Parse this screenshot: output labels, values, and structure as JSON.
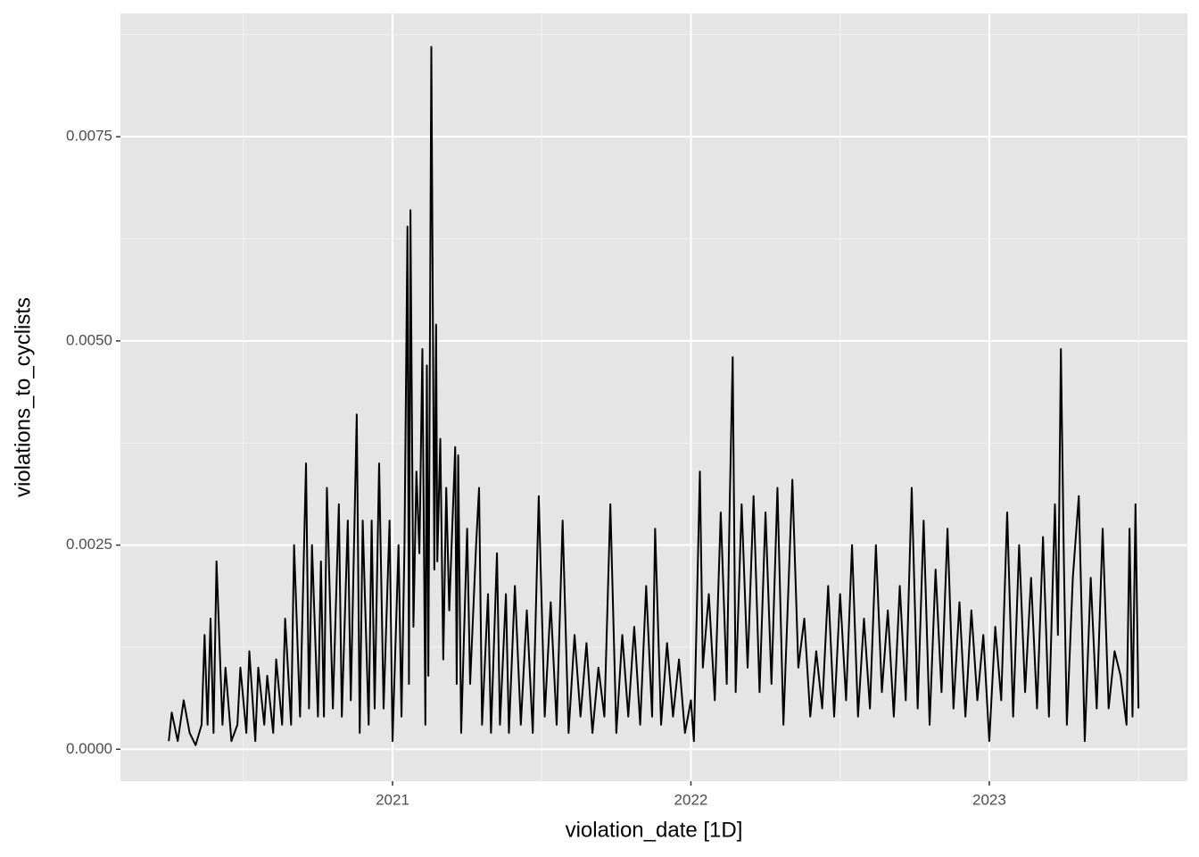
{
  "chart_data": {
    "type": "line",
    "x_label": "violation_date [1D]",
    "y_label": "violations_to_cyclists",
    "xlim": [
      2020.088,
      2023.664
    ],
    "ylim": [
      -0.00039,
      0.00901
    ],
    "xticks": [
      2021,
      2022,
      2023
    ],
    "yticks": [
      {
        "value": 0,
        "label": "0.0000"
      },
      {
        "value": 0.0025,
        "label": "0.0025"
      },
      {
        "value": 0.005,
        "label": "0.0050"
      },
      {
        "value": 0.0075,
        "label": "0.0075"
      }
    ],
    "x_minor_grid": [
      2020.5,
      2021.5,
      2022.5,
      2023.5
    ],
    "y_minor_grid": [
      0.00125,
      0.00375,
      0.00625,
      0.00875
    ],
    "grid": true,
    "series": [
      {
        "color": "#000000",
        "x": [
          2020.25,
          2020.26,
          2020.28,
          2020.3,
          2020.32,
          2020.34,
          2020.36,
          2020.37,
          2020.38,
          2020.39,
          2020.4,
          2020.41,
          2020.43,
          2020.44,
          2020.46,
          2020.48,
          2020.49,
          2020.51,
          2020.52,
          2020.54,
          2020.55,
          2020.57,
          2020.58,
          2020.6,
          2020.61,
          2020.63,
          2020.64,
          2020.66,
          2020.67,
          2020.69,
          2020.71,
          2020.72,
          2020.73,
          2020.75,
          2020.76,
          2020.77,
          2020.78,
          2020.8,
          2020.82,
          2020.83,
          2020.85,
          2020.86,
          2020.88,
          2020.89,
          2020.9,
          2020.92,
          2020.93,
          2020.94,
          2020.955,
          2020.97,
          2020.99,
          2021.0,
          2021.02,
          2021.03,
          2021.04,
          2021.05,
          2021.055,
          2021.06,
          2021.07,
          2021.08,
          2021.09,
          2021.1,
          2021.11,
          2021.115,
          2021.12,
          2021.13,
          2021.14,
          2021.146,
          2021.15,
          2021.16,
          2021.17,
          2021.18,
          2021.19,
          2021.21,
          2021.215,
          2021.22,
          2021.23,
          2021.25,
          2021.26,
          2021.28,
          2021.29,
          2021.3,
          2021.32,
          2021.33,
          2021.35,
          2021.36,
          2021.38,
          2021.39,
          2021.41,
          2021.43,
          2021.45,
          2021.47,
          2021.49,
          2021.51,
          2021.53,
          2021.55,
          2021.57,
          2021.59,
          2021.61,
          2021.63,
          2021.65,
          2021.67,
          2021.69,
          2021.71,
          2021.73,
          2021.75,
          2021.77,
          2021.79,
          2021.81,
          2021.83,
          2021.85,
          2021.87,
          2021.88,
          2021.9,
          2021.92,
          2021.94,
          2021.96,
          2021.98,
          2022.0,
          2022.01,
          2022.03,
          2022.04,
          2022.06,
          2022.08,
          2022.1,
          2022.12,
          2022.13,
          2022.14,
          2022.15,
          2022.17,
          2022.19,
          2022.21,
          2022.23,
          2022.25,
          2022.27,
          2022.29,
          2022.31,
          2022.34,
          2022.36,
          2022.38,
          2022.4,
          2022.42,
          2022.44,
          2022.46,
          2022.48,
          2022.5,
          2022.52,
          2022.54,
          2022.56,
          2022.58,
          2022.6,
          2022.62,
          2022.64,
          2022.66,
          2022.68,
          2022.7,
          2022.72,
          2022.74,
          2022.76,
          2022.78,
          2022.8,
          2022.82,
          2022.84,
          2022.86,
          2022.88,
          2022.9,
          2022.92,
          2022.94,
          2022.96,
          2022.98,
          2023.0,
          2023.02,
          2023.04,
          2023.06,
          2023.08,
          2023.1,
          2023.12,
          2023.14,
          2023.16,
          2023.18,
          2023.2,
          2023.22,
          2023.23,
          2023.24,
          2023.25,
          2023.26,
          2023.28,
          2023.3,
          2023.32,
          2023.34,
          2023.36,
          2023.38,
          2023.4,
          2023.42,
          2023.44,
          2023.46,
          2023.47,
          2023.48,
          2023.49,
          2023.5
        ],
        "values": [
          0.0001,
          0.00045,
          0.0001,
          0.0006,
          0.0002,
          5e-05,
          0.0003,
          0.0014,
          0.0003,
          0.0016,
          0.0002,
          0.0023,
          0.0003,
          0.001,
          0.0001,
          0.0003,
          0.001,
          0.0002,
          0.0012,
          0.0001,
          0.001,
          0.0003,
          0.0009,
          0.0002,
          0.0011,
          0.0003,
          0.0016,
          0.0003,
          0.0025,
          0.0004,
          0.0035,
          0.0005,
          0.0025,
          0.0004,
          0.0023,
          0.0004,
          0.0032,
          0.0005,
          0.003,
          0.0004,
          0.0028,
          0.0006,
          0.0041,
          0.0002,
          0.0028,
          0.0003,
          0.0028,
          0.0005,
          0.0035,
          0.0005,
          0.0028,
          0.0001,
          0.0025,
          0.0004,
          0.0025,
          0.0064,
          0.0008,
          0.0066,
          0.0015,
          0.0034,
          0.0024,
          0.0049,
          0.0003,
          0.0047,
          0.0009,
          0.0086,
          0.0022,
          0.0052,
          0.0023,
          0.0038,
          0.0011,
          0.0032,
          0.0017,
          0.0037,
          0.0008,
          0.0036,
          0.0002,
          0.0027,
          0.0008,
          0.0025,
          0.0032,
          0.0003,
          0.0019,
          0.0002,
          0.0024,
          0.0003,
          0.0019,
          0.0002,
          0.002,
          0.0003,
          0.0017,
          0.0002,
          0.0031,
          0.0004,
          0.0018,
          0.0003,
          0.0028,
          0.0002,
          0.0014,
          0.0004,
          0.0013,
          0.0002,
          0.001,
          0.0004,
          0.003,
          0.0002,
          0.0014,
          0.0004,
          0.0015,
          0.0003,
          0.002,
          0.0004,
          0.0027,
          0.0003,
          0.0013,
          0.0004,
          0.0011,
          0.0002,
          0.0006,
          0.0001,
          0.0034,
          0.001,
          0.0019,
          0.0006,
          0.0029,
          0.0008,
          0.003,
          0.0048,
          0.0007,
          0.003,
          0.001,
          0.0031,
          0.0007,
          0.0029,
          0.0008,
          0.0032,
          0.0003,
          0.0033,
          0.001,
          0.0016,
          0.0004,
          0.0012,
          0.0005,
          0.002,
          0.0004,
          0.0019,
          0.0006,
          0.0025,
          0.0004,
          0.0016,
          0.0005,
          0.0025,
          0.0007,
          0.0017,
          0.0004,
          0.002,
          0.0006,
          0.0032,
          0.0005,
          0.0028,
          0.0003,
          0.0022,
          0.0007,
          0.0027,
          0.0005,
          0.0018,
          0.0004,
          0.0017,
          0.0006,
          0.0014,
          0.0001,
          0.0015,
          0.0006,
          0.0029,
          0.0004,
          0.0025,
          0.0007,
          0.0021,
          0.0005,
          0.0026,
          0.0004,
          0.003,
          0.0014,
          0.0049,
          0.0023,
          0.0003,
          0.0021,
          0.0031,
          0.0001,
          0.0021,
          0.0005,
          0.0027,
          0.0005,
          0.0012,
          0.0009,
          0.0003,
          0.0027,
          0.0004,
          0.003,
          0.0005
        ]
      }
    ]
  }
}
